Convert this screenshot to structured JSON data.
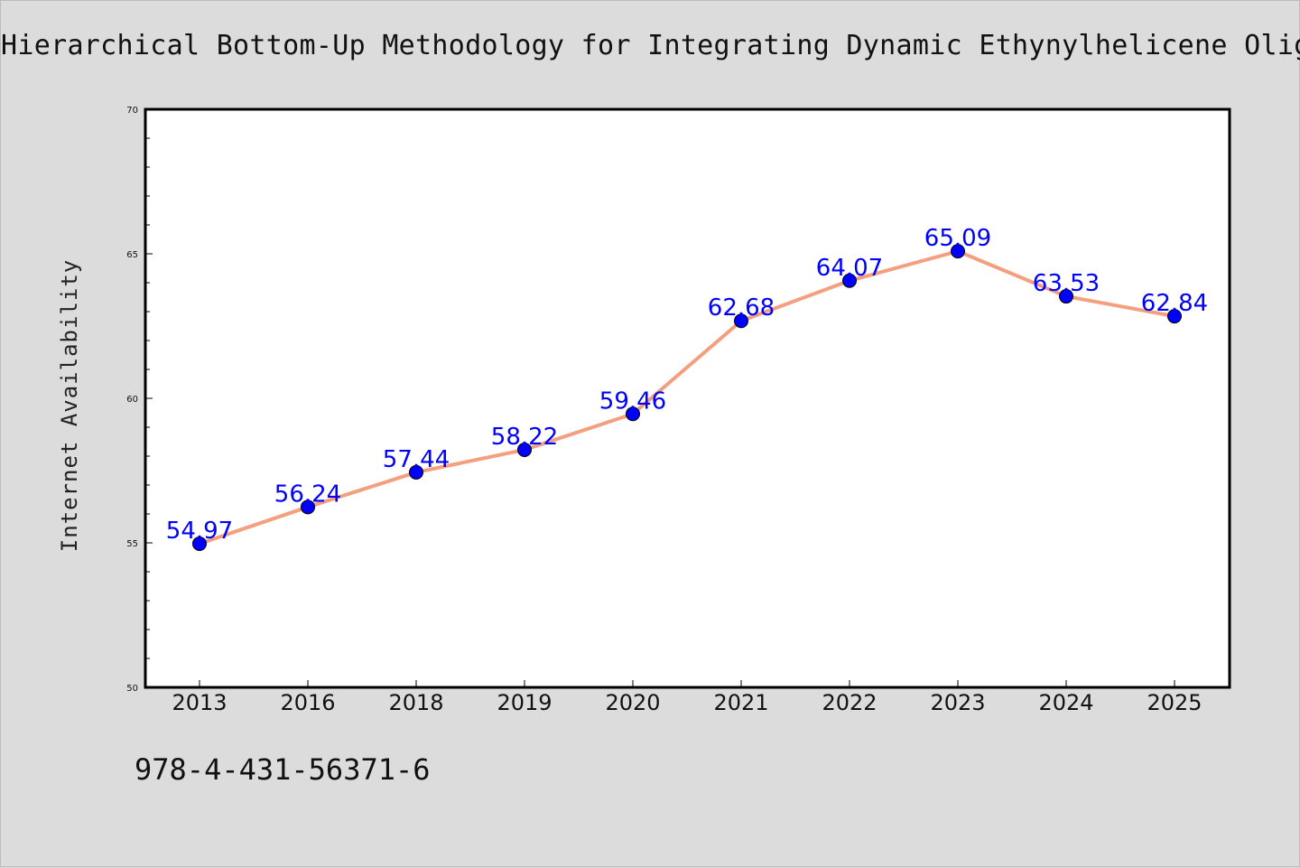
{
  "title": "Hierarchical Bottom-Up Methodology for Integrating Dynamic Ethynylhelicene Oligomers",
  "footer_code": "978-4-431-56371-6",
  "colors": {
    "line": "#f4a07f",
    "marker": "#0000ff",
    "label": "#0000ff",
    "background": "#dcdcdc",
    "plot_bg": "#ffffff"
  },
  "chart_data": {
    "type": "line",
    "title": "Hierarchical Bottom-Up Methodology for Integrating Dynamic Ethynylhelicene Oligomers",
    "xlabel": "",
    "ylabel": "Internet Availability",
    "categories": [
      "2013",
      "2016",
      "2018",
      "2019",
      "2020",
      "2021",
      "2022",
      "2023",
      "2024",
      "2025"
    ],
    "series": [
      {
        "values": [
          54.97,
          56.24,
          57.44,
          58.22,
          59.46,
          62.68,
          64.07,
          65.09,
          63.53,
          62.84
        ],
        "labels": [
          "54.97",
          "56.24",
          "57.44",
          "58.22",
          "59.46",
          "62.68",
          "64.07",
          "65.09",
          "63.53",
          "62.84"
        ]
      }
    ],
    "ylim": [
      50,
      70
    ],
    "yticks": [
      "50",
      "55",
      "60",
      "65",
      "70"
    ],
    "grid": false,
    "legend": "none"
  }
}
